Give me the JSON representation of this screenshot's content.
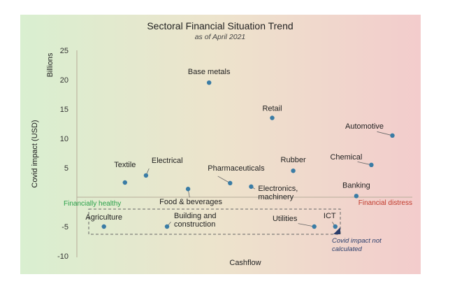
{
  "chart_data": {
    "type": "scatter",
    "title": "Sectoral Financial Situation Trend",
    "subtitle": "as of April 2021",
    "ylabel": "Covid impact (USD)",
    "yunit": "Billions",
    "xlabel": "Cashflow",
    "ylim": [
      -10,
      25
    ],
    "yticks": [
      "25",
      "20",
      "15",
      "10",
      "5",
      "-5",
      "-10"
    ],
    "zone_left_label": "Financially healthy",
    "zone_right_label": "Financial distress",
    "note": [
      "Covid impact not",
      "calculated"
    ],
    "colors": {
      "point": "#3a7ca5",
      "bg_left": "#d9efd0",
      "bg_mid": "#ede3cc",
      "bg_right": "#f3cccc",
      "healthy": "#2aa14a",
      "distress": "#c0392b"
    },
    "points": [
      {
        "label": "Agriculture",
        "x": 0.09,
        "y": -5
      },
      {
        "label": "Textile",
        "x": 0.16,
        "y": 2.5
      },
      {
        "label": "Electrical",
        "x": 0.23,
        "y": 3.7
      },
      {
        "label": "Building and construction",
        "x": 0.3,
        "y": -5
      },
      {
        "label": "Food & beverages",
        "x": 0.37,
        "y": 1.4
      },
      {
        "label": "Base metals",
        "x": 0.44,
        "y": 19.5
      },
      {
        "label": "Pharmaceuticals",
        "x": 0.51,
        "y": 2.4
      },
      {
        "label": "Electronics, machinery",
        "x": 0.58,
        "y": 1.8
      },
      {
        "label": "Retail",
        "x": 0.65,
        "y": 13.5
      },
      {
        "label": "Rubber",
        "x": 0.72,
        "y": 4.5
      },
      {
        "label": "Utilities",
        "x": 0.79,
        "y": -5
      },
      {
        "label": "ICT",
        "x": 0.86,
        "y": -5
      },
      {
        "label": "Banking",
        "x": 0.93,
        "y": 0.2
      },
      {
        "label": "Chemical",
        "x": 0.98,
        "y": 5.5
      },
      {
        "label": "Automotive",
        "x": 1.05,
        "y": 10.5
      }
    ],
    "legend": "none"
  }
}
